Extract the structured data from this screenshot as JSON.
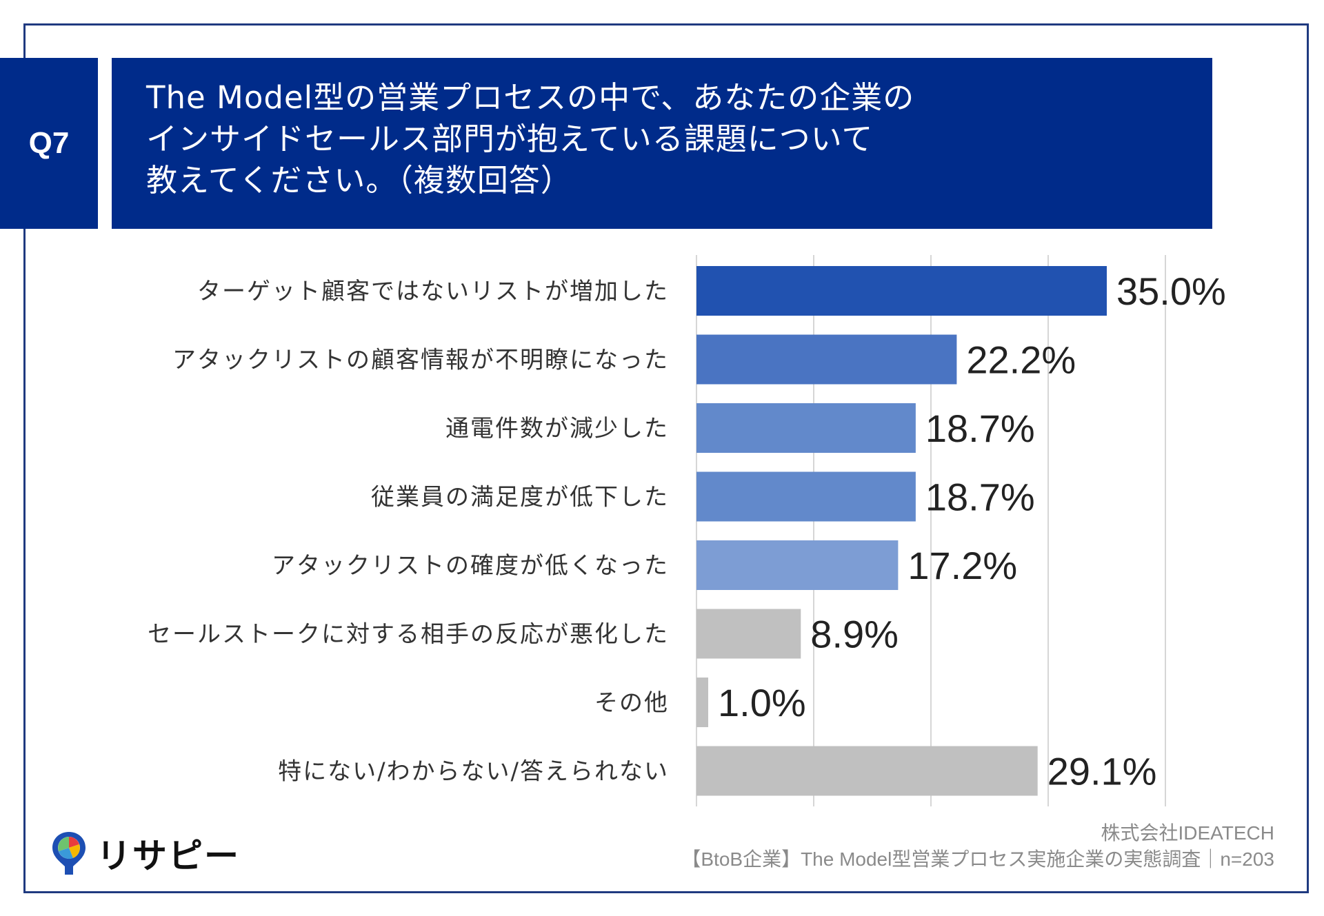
{
  "header": {
    "question_no": "Q7",
    "title_lines": [
      "The Model型の営業プロセスの中で、あなたの企業の",
      "インサイドセールス部門が抱えている課題について",
      "教えてください。（複数回答）"
    ]
  },
  "chart_data": {
    "type": "bar",
    "orientation": "horizontal",
    "categories": [
      "ターゲット顧客ではないリストが増加した",
      "アタックリストの顧客情報が不明瞭になった",
      "通電件数が減少した",
      "従業員の満足度が低下した",
      "アタックリストの確度が低くなった",
      "セールストークに対する相手の反応が悪化した",
      "その他",
      "特にない/わからない/答えられない"
    ],
    "values": [
      35.0,
      22.2,
      18.7,
      18.7,
      17.2,
      8.9,
      1.0,
      29.1
    ],
    "value_labels": [
      "35.0%",
      "22.2%",
      "18.7%",
      "18.7%",
      "17.2%",
      "8.9%",
      "1.0%",
      "29.1%"
    ],
    "colors": [
      "#2152b0",
      "#4a74c2",
      "#6289cb",
      "#6289cb",
      "#7d9dd4",
      "#c0c0c0",
      "#c0c0c0",
      "#c0c0c0"
    ],
    "xlim": [
      0,
      40
    ],
    "grid": true,
    "grid_step": 10
  },
  "logo": {
    "text": "リサピー"
  },
  "source": {
    "line1": "株式会社IDEATECH",
    "line2": "【BtoB企業】The Model型営業プロセス実施企業の実態調査｜n=203"
  }
}
